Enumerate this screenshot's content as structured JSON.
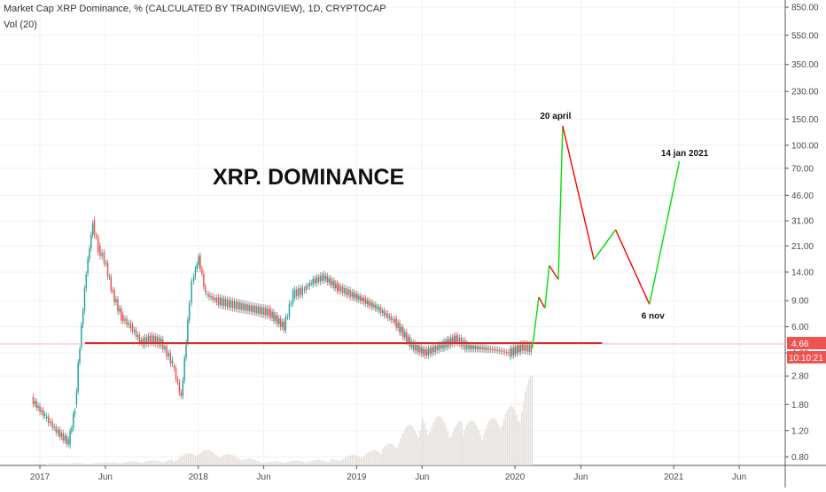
{
  "header": {
    "title": "Market Cap XRP Dominance, % (CALCULATED BY TRADINGVIEW), 1D, CRYPTOCAP",
    "vol_label": "Vol (20)"
  },
  "overlay_title": "XRP. DOMINANCE",
  "price_badge": {
    "value": "4.66",
    "countdown": "10:10:21",
    "color": "#ef5350"
  },
  "colors": {
    "up": "#26a69a",
    "down": "#ef5350",
    "support": "#d32f2f",
    "projection_up": "#00e000",
    "projection_down": "#ff0000",
    "volume": "#e6e0dc",
    "grid": "#f0f0f0"
  },
  "chart_data": {
    "type": "line",
    "scale": "log",
    "y_ticks": [
      "850.00",
      "550.00",
      "350.00",
      "230.00",
      "150.00",
      "100.00",
      "70.00",
      "46.00",
      "31.00",
      "21.00",
      "14.00",
      "9.00",
      "6.00",
      "4.00",
      "2.80",
      "1.80",
      "1.20",
      "0.80"
    ],
    "x_ticks": [
      "2017",
      "Jun",
      "2018",
      "Jun",
      "2019",
      "Jun",
      "2020",
      "Jun",
      "2021",
      "Jun"
    ],
    "ylim": [
      0.7,
      950
    ],
    "series": [
      {
        "x": [
          "2016-12-15",
          "2017-01-15",
          "2017-02-10",
          "2017-03-10",
          "2017-03-25",
          "2017-04-05",
          "2017-04-20",
          "2017-05-05",
          "2017-05-18",
          "2017-06-01",
          "2017-06-20",
          "2017-07-10",
          "2017-08-01",
          "2017-08-25",
          "2017-09-15",
          "2017-10-10",
          "2017-11-05",
          "2017-11-25",
          "2017-12-10",
          "2017-12-20",
          "2018-01-04",
          "2018-01-20",
          "2018-02-15",
          "2018-03-20",
          "2018-05-01",
          "2018-06-15",
          "2018-07-20",
          "2018-08-10",
          "2018-09-01",
          "2018-09-21",
          "2018-10-20",
          "2018-11-20",
          "2018-12-20",
          "2019-01-20",
          "2019-02-20",
          "2019-04-01",
          "2019-05-10",
          "2019-06-10",
          "2019-07-20",
          "2019-08-20",
          "2019-09-15",
          "2019-10-20",
          "2019-11-20",
          "2019-12-20",
          "2020-01-20",
          "2020-02-10"
        ],
        "values": [
          1.95,
          1.5,
          1.2,
          1.0,
          1.7,
          4.5,
          14.0,
          30.0,
          20.0,
          17.0,
          10.0,
          7.0,
          6.0,
          4.7,
          5.0,
          4.7,
          3.4,
          2.0,
          6.5,
          12.0,
          17.5,
          10.0,
          9.0,
          8.5,
          8.0,
          7.5,
          6.0,
          10.0,
          10.5,
          12.0,
          13.0,
          11.0,
          10.0,
          9.0,
          8.0,
          6.5,
          4.5,
          4.0,
          4.5,
          5.0,
          4.4,
          4.3,
          4.2,
          4.0,
          4.4,
          4.3
        ]
      }
    ],
    "projection": [
      {
        "x": "2020-02-10",
        "y": 4.3
      },
      {
        "x": "2020-02-25",
        "y": 9.5
      },
      {
        "x": "2020-03-10",
        "y": 8.0
      },
      {
        "x": "2020-03-20",
        "y": 15.5
      },
      {
        "x": "2020-04-10",
        "y": 12.5
      },
      {
        "x": "2020-04-20",
        "y": 135
      },
      {
        "x": "2020-07-01",
        "y": 17
      },
      {
        "x": "2020-08-20",
        "y": 27
      },
      {
        "x": "2020-11-06",
        "y": 8.5
      },
      {
        "x": "2021-01-14",
        "y": 78
      }
    ],
    "support_level": {
      "value": 4.66,
      "x_start": "2017-04-15",
      "x_end": "2020-07-20"
    },
    "annotations": [
      {
        "text": "20 april",
        "x": "2020-04-20",
        "y": 135
      },
      {
        "text": "14 jan 2021",
        "x": "2021-01-14",
        "y": 78
      },
      {
        "text": "6 nov",
        "x": "2020-11-06",
        "y": 8.5
      }
    ],
    "volume": {
      "x": [
        "2017-01-15",
        "2017-06-01",
        "2017-11-01",
        "2018-01-01",
        "2018-06-01",
        "2018-11-01",
        "2019-03-01",
        "2019-06-01",
        "2019-09-01",
        "2019-12-01",
        "2020-02-10"
      ],
      "values": [
        0.02,
        0.03,
        0.06,
        0.18,
        0.04,
        0.06,
        0.18,
        0.55,
        0.45,
        0.5,
        0.95
      ]
    }
  }
}
